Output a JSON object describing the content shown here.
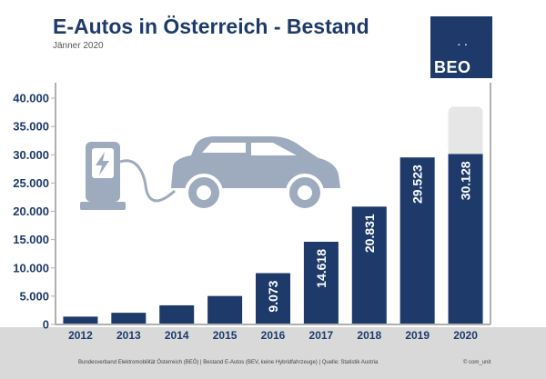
{
  "header": {
    "title": "E-Autos in Österreich - Bestand",
    "subtitle": "Jänner 2020"
  },
  "logo": {
    "dots": ". .",
    "text": "BEO"
  },
  "footer": {
    "source": "Bundesverband Elektromobilität Österreich (BEÖ) | Bestand E-Autos (BEV, keine Hybridfahrzeuge) | Quelle: Statistik Austria",
    "credit": "© com_unit"
  },
  "colors": {
    "bar": "#1e3a6a",
    "illustration": "#9eaabd",
    "projection": "#e6e6e6",
    "footer": "#d9d9d9"
  },
  "chart_data": {
    "type": "bar",
    "categories": [
      "2012",
      "2013",
      "2014",
      "2015",
      "2016",
      "2017",
      "2018",
      "2019",
      "2020"
    ],
    "values": [
      1389,
      2070,
      3386,
      5032,
      9073,
      14618,
      20831,
      29523,
      30128
    ],
    "data_labels": [
      "",
      "",
      "",
      "",
      "9.073",
      "14.618",
      "20.831",
      "29.523",
      "30.128"
    ],
    "ylim": [
      0,
      40000
    ],
    "yticks": [
      0,
      5000,
      10000,
      15000,
      20000,
      25000,
      30000,
      35000,
      40000
    ],
    "ytick_labels": [
      "0",
      "5.000",
      "10.000",
      "15.000",
      "20.000",
      "25.000",
      "30.000",
      "35.000",
      "40.000"
    ],
    "projection_value": 38500,
    "title": "E-Autos in Österreich - Bestand",
    "xlabel": "",
    "ylabel": "",
    "grid": false
  }
}
